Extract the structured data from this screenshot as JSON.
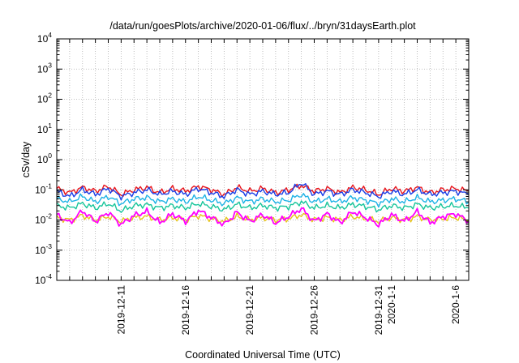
{
  "chart_data": {
    "type": "line",
    "title": "/data/run/goesPlots/archive/2020-01-06/flux/../bryn/31daysEarth.plot",
    "xlabel": "Coordinated Universal Time (UTC)",
    "ylabel": "cSv/day",
    "yscale": "log",
    "ylim": [
      0.0001,
      10000
    ],
    "xlim": [
      "2019-12-06",
      "2020-01-07"
    ],
    "grid": true,
    "legend": "none",
    "x_tick_labels": [
      "2019-12-11",
      "2019-12-16",
      "2019-12-21",
      "2019-12-26",
      "2019-12-31",
      "2020-1-1",
      "2020-1-6"
    ],
    "y_ticks": [
      {
        "base": "10",
        "exp": "4"
      },
      {
        "base": "10",
        "exp": "3"
      },
      {
        "base": "10",
        "exp": "2"
      },
      {
        "base": "10",
        "exp": "1"
      },
      {
        "base": "10",
        "exp": "0"
      },
      {
        "base": "10",
        "exp": "-1"
      },
      {
        "base": "10",
        "exp": "-2"
      },
      {
        "base": "10",
        "exp": "-3"
      },
      {
        "base": "10",
        "exp": "-4"
      }
    ],
    "x": [
      "2019-12-06",
      "2019-12-07",
      "2019-12-08",
      "2019-12-09",
      "2019-12-10",
      "2019-12-11",
      "2019-12-12",
      "2019-12-13",
      "2019-12-14",
      "2019-12-15",
      "2019-12-16",
      "2019-12-17",
      "2019-12-18",
      "2019-12-19",
      "2019-12-20",
      "2019-12-21",
      "2019-12-22",
      "2019-12-23",
      "2019-12-24",
      "2019-12-25",
      "2019-12-26",
      "2019-12-27",
      "2019-12-28",
      "2019-12-29",
      "2019-12-30",
      "2019-12-31",
      "2020-01-01",
      "2020-01-02",
      "2020-01-03",
      "2020-01-04",
      "2020-01-05",
      "2020-01-06",
      "2020-01-07"
    ],
    "series": [
      {
        "color": "#e8141b",
        "values": [
          0.11,
          0.08,
          0.12,
          0.09,
          0.13,
          0.07,
          0.1,
          0.12,
          0.08,
          0.11,
          0.09,
          0.13,
          0.1,
          0.07,
          0.12,
          0.09,
          0.11,
          0.08,
          0.1,
          0.14,
          0.09,
          0.11,
          0.08,
          0.12,
          0.1,
          0.07,
          0.11,
          0.09,
          0.12,
          0.08,
          0.1,
          0.11,
          0.09
        ]
      },
      {
        "color": "#1a3ee8",
        "values": [
          0.09,
          0.06,
          0.1,
          0.07,
          0.11,
          0.06,
          0.08,
          0.1,
          0.07,
          0.09,
          0.07,
          0.11,
          0.08,
          0.06,
          0.1,
          0.07,
          0.09,
          0.07,
          0.08,
          0.17,
          0.07,
          0.09,
          0.07,
          0.1,
          0.08,
          0.06,
          0.09,
          0.07,
          0.1,
          0.07,
          0.08,
          0.09,
          0.07
        ]
      },
      {
        "color": "#1fb3e6",
        "values": [
          0.05,
          0.04,
          0.06,
          0.04,
          0.06,
          0.035,
          0.05,
          0.055,
          0.04,
          0.05,
          0.04,
          0.06,
          0.045,
          0.035,
          0.055,
          0.04,
          0.05,
          0.04,
          0.045,
          0.07,
          0.04,
          0.05,
          0.04,
          0.055,
          0.045,
          0.035,
          0.05,
          0.04,
          0.055,
          0.04,
          0.045,
          0.05,
          0.04
        ]
      },
      {
        "color": "#17c59b",
        "values": [
          0.03,
          0.025,
          0.035,
          0.025,
          0.035,
          0.02,
          0.03,
          0.032,
          0.025,
          0.03,
          0.025,
          0.035,
          0.028,
          0.022,
          0.033,
          0.025,
          0.03,
          0.025,
          0.028,
          0.04,
          0.025,
          0.03,
          0.025,
          0.033,
          0.028,
          0.022,
          0.03,
          0.025,
          0.033,
          0.025,
          0.028,
          0.03,
          0.025
        ]
      },
      {
        "color": "#e6c419",
        "values": [
          0.012,
          0.01,
          0.014,
          0.01,
          0.013,
          0.009,
          0.012,
          0.013,
          0.01,
          0.012,
          0.01,
          0.014,
          0.011,
          0.009,
          0.013,
          0.01,
          0.012,
          0.01,
          0.011,
          0.015,
          0.01,
          0.012,
          0.01,
          0.013,
          0.011,
          0.009,
          0.012,
          0.01,
          0.013,
          0.01,
          0.011,
          0.012,
          0.01
        ]
      },
      {
        "color": "#ff00ff",
        "values": [
          0.015,
          0.008,
          0.02,
          0.009,
          0.018,
          0.007,
          0.014,
          0.019,
          0.008,
          0.016,
          0.009,
          0.021,
          0.012,
          0.007,
          0.018,
          0.009,
          0.015,
          0.008,
          0.013,
          0.024,
          0.009,
          0.016,
          0.008,
          0.019,
          0.012,
          0.007,
          0.015,
          0.009,
          0.019,
          0.008,
          0.013,
          0.016,
          0.009
        ]
      }
    ]
  }
}
